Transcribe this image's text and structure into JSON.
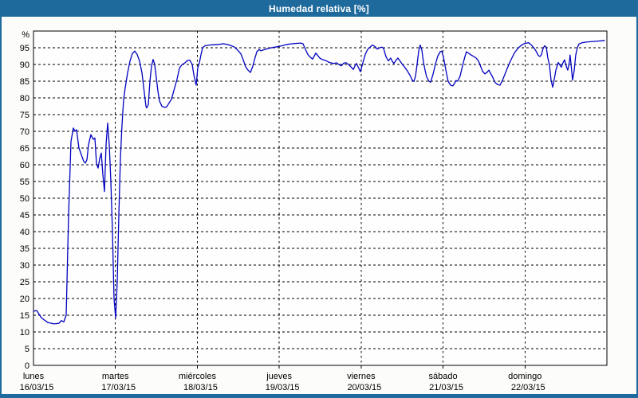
{
  "window": {
    "title": "Humedad relativa [%]"
  },
  "colors": {
    "titlebar_bg": "#1e6a9c",
    "titlebar_text": "#ffffff",
    "window_border": "#1e6a9c",
    "window_bg": "#fcfdfb",
    "plot_bg": "#fefefe",
    "line": "#0202c0",
    "grid": "#000000",
    "axis": "#000000",
    "label_text": "#000000"
  },
  "chart_data": {
    "type": "line",
    "title": "Humedad relativa [%]",
    "ylabel": "%",
    "ylim": [
      0,
      100
    ],
    "yticks": [
      0,
      5,
      10,
      15,
      20,
      25,
      30,
      35,
      40,
      45,
      50,
      55,
      60,
      65,
      70,
      75,
      80,
      85,
      90,
      95
    ],
    "grid": "dashed",
    "legend": "none",
    "x_axis": {
      "unit": "days",
      "range_days": [
        0,
        7
      ]
    },
    "categories": [
      {
        "day": "lunes",
        "date": "16/03/15"
      },
      {
        "day": "martes",
        "date": "17/03/15"
      },
      {
        "day": "miércoles",
        "date": "18/03/15"
      },
      {
        "day": "jueves",
        "date": "19/03/15"
      },
      {
        "day": "viernes",
        "date": "20/03/15"
      },
      {
        "day": "sábado",
        "date": "21/03/15"
      },
      {
        "day": "domingo",
        "date": "22/03/15"
      }
    ],
    "series": [
      {
        "name": "Humedad relativa",
        "points": [
          [
            0.0,
            16.2
          ],
          [
            0.039,
            16.4
          ],
          [
            0.097,
            14.2
          ],
          [
            0.175,
            12.8
          ],
          [
            0.253,
            12.4
          ],
          [
            0.312,
            12.6
          ],
          [
            0.341,
            13.4
          ],
          [
            0.37,
            13.0
          ],
          [
            0.399,
            15.0
          ],
          [
            0.428,
            45.0
          ],
          [
            0.458,
            67.0
          ],
          [
            0.487,
            71.0
          ],
          [
            0.506,
            70.0
          ],
          [
            0.526,
            70.5
          ],
          [
            0.555,
            65.0
          ],
          [
            0.584,
            63.0
          ],
          [
            0.613,
            61.0
          ],
          [
            0.633,
            60.5
          ],
          [
            0.652,
            61.5
          ],
          [
            0.672,
            66.0
          ],
          [
            0.701,
            69.0
          ],
          [
            0.73,
            67.6
          ],
          [
            0.75,
            68.0
          ],
          [
            0.769,
            60.3
          ],
          [
            0.789,
            59.0
          ],
          [
            0.808,
            61.8
          ],
          [
            0.828,
            63.5
          ],
          [
            0.847,
            57.0
          ],
          [
            0.866,
            52.0
          ],
          [
            0.886,
            66.0
          ],
          [
            0.905,
            72.5
          ],
          [
            0.925,
            66.0
          ],
          [
            0.944,
            55.0
          ],
          [
            0.964,
            40.0
          ],
          [
            0.983,
            20.0
          ],
          [
            1.003,
            14.2
          ],
          [
            1.022,
            25.0
          ],
          [
            1.042,
            45.0
          ],
          [
            1.061,
            62.0
          ],
          [
            1.081,
            72.0
          ],
          [
            1.1,
            79.5
          ],
          [
            1.12,
            83.0
          ],
          [
            1.149,
            87.5
          ],
          [
            1.178,
            91.0
          ],
          [
            1.207,
            93.3
          ],
          [
            1.236,
            94.0
          ],
          [
            1.266,
            93.0
          ],
          [
            1.295,
            91.0
          ],
          [
            1.324,
            87.5
          ],
          [
            1.353,
            81.5
          ],
          [
            1.373,
            77.5
          ],
          [
            1.382,
            77.0
          ],
          [
            1.402,
            78.0
          ],
          [
            1.421,
            85.0
          ],
          [
            1.441,
            89.5
          ],
          [
            1.46,
            91.5
          ],
          [
            1.48,
            90.0
          ],
          [
            1.499,
            86.0
          ],
          [
            1.519,
            82.0
          ],
          [
            1.538,
            79.1
          ],
          [
            1.567,
            77.5
          ],
          [
            1.597,
            77.2
          ],
          [
            1.626,
            77.3
          ],
          [
            1.655,
            78.5
          ],
          [
            1.684,
            79.6
          ],
          [
            1.713,
            82.1
          ],
          [
            1.752,
            85.6
          ],
          [
            1.782,
            88.9
          ],
          [
            1.811,
            89.9
          ],
          [
            1.85,
            90.5
          ],
          [
            1.879,
            91.2
          ],
          [
            1.908,
            91.3
          ],
          [
            1.937,
            90.0
          ],
          [
            1.957,
            87.0
          ],
          [
            1.976,
            84.8
          ],
          [
            1.986,
            83.8
          ],
          [
            2.006,
            89.0
          ],
          [
            2.025,
            90.5
          ],
          [
            2.045,
            93.0
          ],
          [
            2.064,
            95.0
          ],
          [
            2.093,
            95.6
          ],
          [
            2.142,
            95.8
          ],
          [
            2.2,
            95.9
          ],
          [
            2.259,
            96.0
          ],
          [
            2.317,
            96.2
          ],
          [
            2.366,
            96.0
          ],
          [
            2.415,
            95.6
          ],
          [
            2.453,
            95.2
          ],
          [
            2.492,
            94.3
          ],
          [
            2.531,
            93.2
          ],
          [
            2.561,
            91.3
          ],
          [
            2.59,
            89.3
          ],
          [
            2.619,
            88.3
          ],
          [
            2.648,
            87.6
          ],
          [
            2.677,
            89.5
          ],
          [
            2.697,
            91.3
          ],
          [
            2.726,
            93.8
          ],
          [
            2.755,
            94.5
          ],
          [
            2.775,
            94.1
          ],
          [
            2.804,
            94.3
          ],
          [
            2.853,
            94.7
          ],
          [
            2.901,
            95.0
          ],
          [
            2.95,
            95.2
          ],
          [
            2.999,
            95.4
          ],
          [
            3.047,
            95.7
          ],
          [
            3.096,
            96.0
          ],
          [
            3.154,
            96.2
          ],
          [
            3.213,
            96.3
          ],
          [
            3.261,
            96.4
          ],
          [
            3.291,
            96.2
          ],
          [
            3.32,
            94.5
          ],
          [
            3.349,
            93.0
          ],
          [
            3.378,
            92.2
          ],
          [
            3.407,
            91.6
          ],
          [
            3.427,
            92.5
          ],
          [
            3.446,
            93.4
          ],
          [
            3.466,
            92.8
          ],
          [
            3.495,
            91.9
          ],
          [
            3.524,
            91.5
          ],
          [
            3.553,
            91.3
          ],
          [
            3.583,
            91.0
          ],
          [
            3.612,
            90.6
          ],
          [
            3.641,
            90.4
          ],
          [
            3.67,
            90.3
          ],
          [
            3.699,
            90.5
          ],
          [
            3.729,
            90.0
          ],
          [
            3.758,
            89.6
          ],
          [
            3.787,
            90.4
          ],
          [
            3.816,
            90.5
          ],
          [
            3.845,
            90.0
          ],
          [
            3.875,
            89.3
          ],
          [
            3.904,
            88.5
          ],
          [
            3.923,
            89.5
          ],
          [
            3.943,
            90.3
          ],
          [
            3.962,
            89.3
          ],
          [
            3.991,
            87.8
          ],
          [
            4.021,
            90.5
          ],
          [
            4.05,
            93.0
          ],
          [
            4.079,
            94.5
          ],
          [
            4.108,
            95.2
          ],
          [
            4.137,
            95.8
          ],
          [
            4.167,
            95.4
          ],
          [
            4.196,
            94.6
          ],
          [
            4.225,
            95.0
          ],
          [
            4.254,
            95.2
          ],
          [
            4.274,
            94.8
          ],
          [
            4.303,
            92.3
          ],
          [
            4.332,
            91.1
          ],
          [
            4.361,
            91.9
          ],
          [
            4.381,
            90.9
          ],
          [
            4.4,
            90.3
          ],
          [
            4.43,
            91.4
          ],
          [
            4.449,
            91.9
          ],
          [
            4.478,
            90.9
          ],
          [
            4.507,
            89.9
          ],
          [
            4.537,
            89.0
          ],
          [
            4.566,
            88.0
          ],
          [
            4.595,
            86.8
          ],
          [
            4.624,
            85.3
          ],
          [
            4.644,
            84.9
          ],
          [
            4.663,
            86.5
          ],
          [
            4.683,
            90.0
          ],
          [
            4.702,
            94.0
          ],
          [
            4.721,
            95.8
          ],
          [
            4.741,
            94.3
          ],
          [
            4.76,
            90.8
          ],
          [
            4.78,
            88.3
          ],
          [
            4.799,
            86.3
          ],
          [
            4.828,
            85.0
          ],
          [
            4.848,
            84.7
          ],
          [
            4.877,
            87.0
          ],
          [
            4.906,
            90.0
          ],
          [
            4.935,
            92.5
          ],
          [
            4.965,
            93.8
          ],
          [
            4.984,
            94.0
          ],
          [
            5.004,
            92.3
          ],
          [
            5.023,
            89.8
          ],
          [
            5.043,
            87.2
          ],
          [
            5.062,
            85.0
          ],
          [
            5.091,
            83.8
          ],
          [
            5.12,
            83.6
          ],
          [
            5.14,
            84.4
          ],
          [
            5.159,
            85.2
          ],
          [
            5.179,
            85.0
          ],
          [
            5.208,
            86.5
          ],
          [
            5.237,
            89.5
          ],
          [
            5.266,
            92.3
          ],
          [
            5.286,
            93.8
          ],
          [
            5.315,
            93.3
          ],
          [
            5.344,
            92.8
          ],
          [
            5.374,
            92.4
          ],
          [
            5.403,
            91.9
          ],
          [
            5.432,
            91.1
          ],
          [
            5.461,
            89.3
          ],
          [
            5.481,
            88.0
          ],
          [
            5.51,
            87.2
          ],
          [
            5.539,
            87.7
          ],
          [
            5.559,
            88.3
          ],
          [
            5.578,
            87.4
          ],
          [
            5.598,
            86.6
          ],
          [
            5.617,
            85.6
          ],
          [
            5.637,
            84.6
          ],
          [
            5.666,
            84.0
          ],
          [
            5.695,
            83.8
          ],
          [
            5.724,
            85.2
          ],
          [
            5.754,
            87.0
          ],
          [
            5.783,
            88.8
          ],
          [
            5.812,
            90.5
          ],
          [
            5.841,
            92.0
          ],
          [
            5.87,
            93.4
          ],
          [
            5.9,
            94.4
          ],
          [
            5.929,
            95.2
          ],
          [
            5.958,
            95.8
          ],
          [
            5.987,
            96.2
          ],
          [
            6.017,
            96.4
          ],
          [
            6.046,
            96.5
          ],
          [
            6.075,
            95.9
          ],
          [
            6.104,
            95.1
          ],
          [
            6.133,
            94.1
          ],
          [
            6.163,
            92.7
          ],
          [
            6.182,
            92.4
          ],
          [
            6.201,
            92.9
          ],
          [
            6.221,
            94.8
          ],
          [
            6.24,
            95.6
          ],
          [
            6.26,
            95.2
          ],
          [
            6.279,
            92.0
          ],
          [
            6.299,
            89.8
          ],
          [
            6.318,
            85.5
          ],
          [
            6.338,
            83.2
          ],
          [
            6.357,
            85.5
          ],
          [
            6.377,
            88.3
          ],
          [
            6.406,
            90.6
          ],
          [
            6.425,
            89.9
          ],
          [
            6.444,
            89.2
          ],
          [
            6.464,
            90.5
          ],
          [
            6.483,
            91.4
          ],
          [
            6.503,
            89.5
          ],
          [
            6.522,
            88.3
          ],
          [
            6.542,
            90.8
          ],
          [
            6.551,
            92.8
          ],
          [
            6.571,
            88.0
          ],
          [
            6.58,
            85.3
          ],
          [
            6.6,
            88.0
          ],
          [
            6.619,
            92.8
          ],
          [
            6.639,
            95.0
          ],
          [
            6.658,
            96.1
          ],
          [
            6.697,
            96.5
          ],
          [
            6.746,
            96.7
          ],
          [
            6.795,
            96.8
          ],
          [
            6.843,
            96.9
          ],
          [
            6.892,
            97.0
          ],
          [
            6.941,
            97.1
          ],
          [
            6.97,
            97.2
          ]
        ]
      }
    ]
  }
}
